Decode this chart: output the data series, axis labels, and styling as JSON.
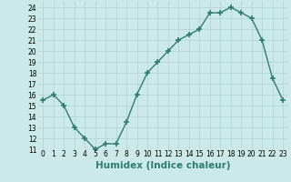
{
  "xlabel": "Humidex (Indice chaleur)",
  "x": [
    0,
    1,
    2,
    3,
    4,
    5,
    6,
    7,
    8,
    9,
    10,
    11,
    12,
    13,
    14,
    15,
    16,
    17,
    18,
    19,
    20,
    21,
    22,
    23
  ],
  "y": [
    15.5,
    16.0,
    15.0,
    13.0,
    12.0,
    11.0,
    11.5,
    11.5,
    13.5,
    16.0,
    18.0,
    19.0,
    20.0,
    21.0,
    21.5,
    22.0,
    23.5,
    23.5,
    24.0,
    23.5,
    23.0,
    21.0,
    17.5,
    15.5
  ],
  "line_color": "#2d7d6e",
  "marker": "+",
  "marker_size": 4,
  "marker_lw": 1.2,
  "bg_color": "#cce9e9",
  "grid_color": "#b0d0d0",
  "xlim": [
    -0.5,
    23.5
  ],
  "ylim": [
    11,
    24.5
  ],
  "yticks": [
    11,
    12,
    13,
    14,
    15,
    16,
    17,
    18,
    19,
    20,
    21,
    22,
    23,
    24
  ],
  "xticks": [
    0,
    1,
    2,
    3,
    4,
    5,
    6,
    7,
    8,
    9,
    10,
    11,
    12,
    13,
    14,
    15,
    16,
    17,
    18,
    19,
    20,
    21,
    22,
    23
  ],
  "tick_fontsize": 5.5,
  "xlabel_fontsize": 7.5,
  "line_width": 1.0
}
